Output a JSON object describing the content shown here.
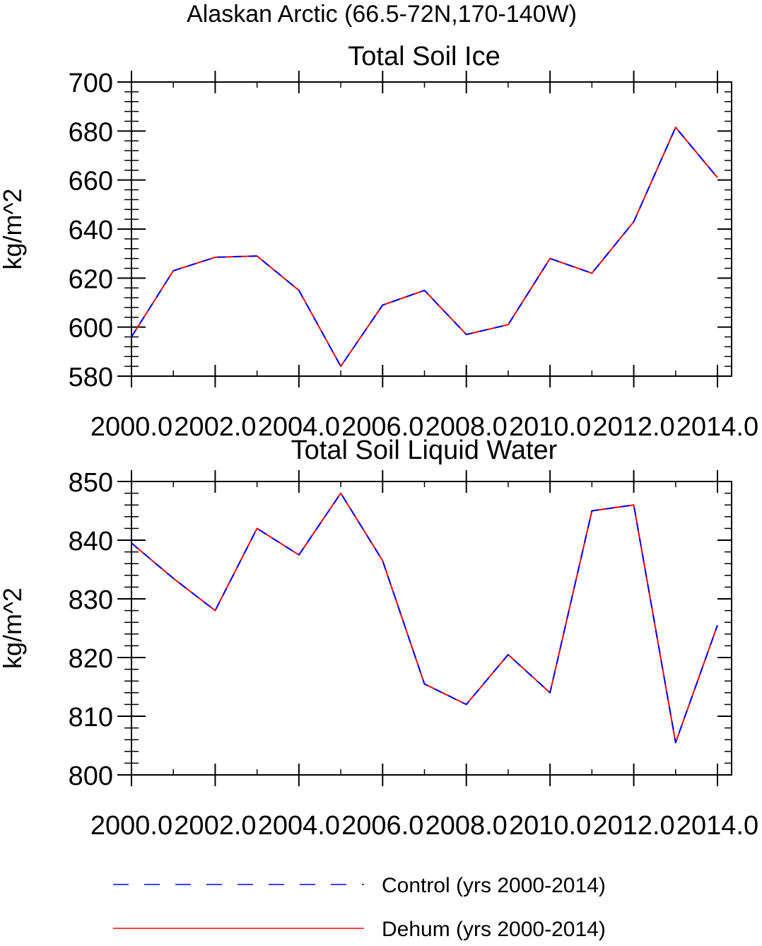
{
  "figure": {
    "title": "Alaskan Arctic (66.5-72N,170-140W)"
  },
  "chart_data": [
    {
      "type": "line",
      "title": "Total Soil Ice",
      "xlabel": "",
      "ylabel": "kg/m^2",
      "xlim": [
        2000,
        2014
      ],
      "ylim": [
        580,
        700
      ],
      "x_ticks": [
        "2000.0",
        "2002.0",
        "2004.0",
        "2006.0",
        "2008.0",
        "2010.0",
        "2012.0",
        "2014.0"
      ],
      "y_ticks": [
        "580",
        "600",
        "620",
        "640",
        "660",
        "680",
        "700"
      ],
      "grid": false,
      "x": [
        2000,
        2001,
        2002,
        2003,
        2004,
        2005,
        2006,
        2007,
        2008,
        2009,
        2010,
        2011,
        2012,
        2013,
        2014
      ],
      "series": [
        {
          "name": "Control (yrs 2000-2014)",
          "color": "#0000ff",
          "style": "dashed",
          "values": [
            596,
            623,
            628.5,
            629,
            615,
            584,
            609,
            615,
            597,
            601,
            628,
            622,
            643,
            681.5,
            661
          ]
        },
        {
          "name": "Dehum (yrs 2000-2014)",
          "color": "#ff0000",
          "style": "solid",
          "values": [
            596,
            623,
            628.5,
            629,
            615,
            584,
            609,
            615,
            597,
            601,
            628,
            622,
            643,
            681.5,
            661
          ]
        }
      ]
    },
    {
      "type": "line",
      "title": "Total Soil Liquid Water",
      "xlabel": "",
      "ylabel": "kg/m^2",
      "xlim": [
        2000,
        2014
      ],
      "ylim": [
        800,
        850
      ],
      "x_ticks": [
        "2000.0",
        "2002.0",
        "2004.0",
        "2006.0",
        "2008.0",
        "2010.0",
        "2012.0",
        "2014.0"
      ],
      "y_ticks": [
        "800",
        "810",
        "820",
        "830",
        "840",
        "850"
      ],
      "grid": false,
      "x": [
        2000,
        2001,
        2002,
        2003,
        2004,
        2005,
        2006,
        2007,
        2008,
        2009,
        2010,
        2011,
        2012,
        2013,
        2014
      ],
      "series": [
        {
          "name": "Control (yrs 2000-2014)",
          "color": "#0000ff",
          "style": "dashed",
          "values": [
            839.5,
            833.5,
            828,
            842,
            837.5,
            848,
            836.5,
            815.5,
            812,
            820.5,
            814,
            845,
            846,
            805.5,
            825.5
          ]
        },
        {
          "name": "Dehum (yrs 2000-2014)",
          "color": "#ff0000",
          "style": "solid",
          "values": [
            839.5,
            833.5,
            828,
            842,
            837.5,
            848,
            836.5,
            815.5,
            812,
            820.5,
            814,
            845,
            846,
            805.5,
            825.5
          ]
        }
      ]
    }
  ],
  "legend": {
    "position": "bottom",
    "items": [
      {
        "label": "Control (yrs 2000-2014)",
        "color": "#0000ff",
        "style": "dashed"
      },
      {
        "label": "Dehum (yrs 2000-2014)",
        "color": "#ff0000",
        "style": "solid"
      }
    ]
  }
}
